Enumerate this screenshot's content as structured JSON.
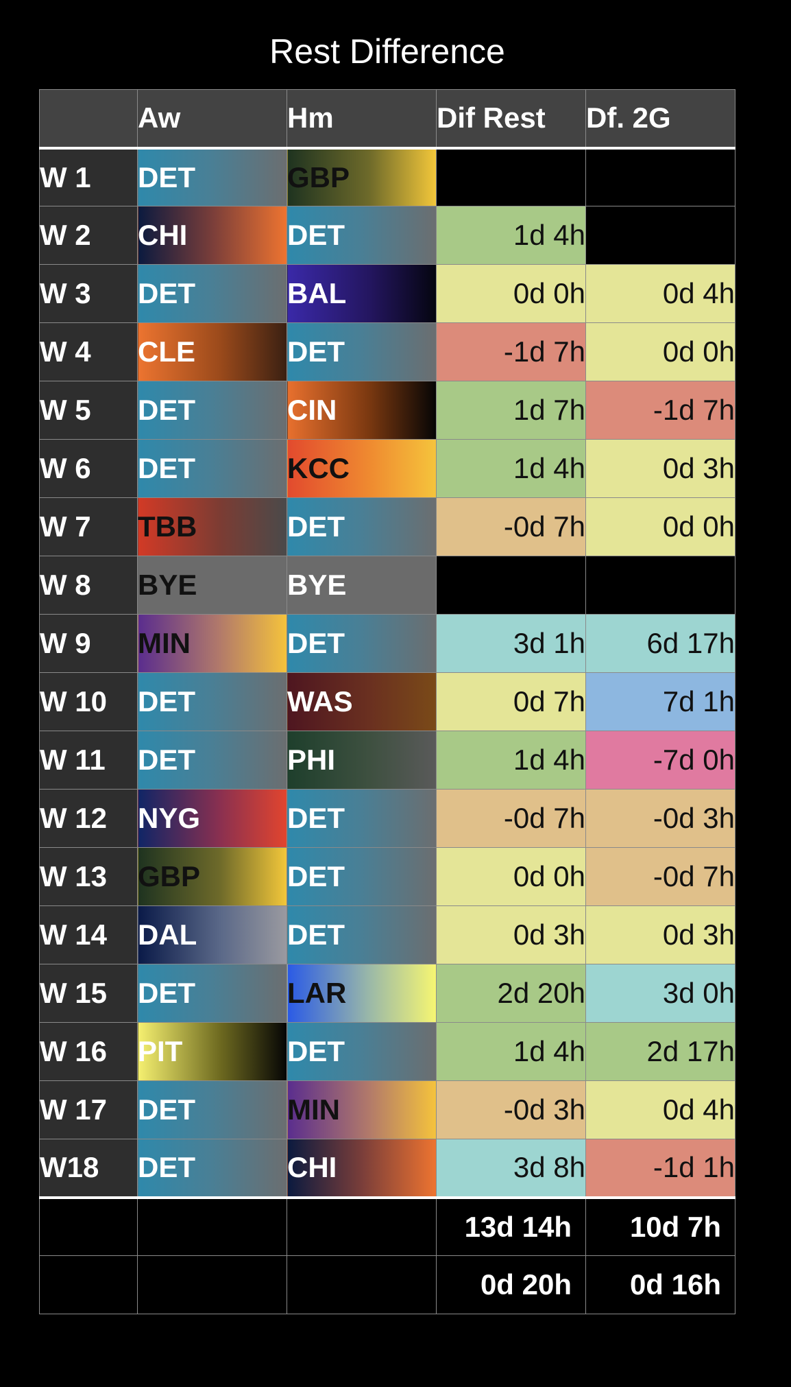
{
  "title": "Rest Difference",
  "headers": {
    "week": "",
    "away": "Aw",
    "home": "Hm",
    "dif_rest": "Dif Rest",
    "dif_2g": "Df. 2G"
  },
  "rows": [
    {
      "week": "W 1",
      "away": "DET",
      "away_text": "light",
      "home": "GBP",
      "home_text": "dark",
      "dif": "",
      "dif_color": "empty",
      "dif2": "",
      "dif2_color": "empty"
    },
    {
      "week": "W 2",
      "away": "CHI",
      "away_text": "light",
      "home": "DET",
      "home_text": "light",
      "dif": "1d 4h",
      "dif_color": "green",
      "dif2": "",
      "dif2_color": "empty"
    },
    {
      "week": "W 3",
      "away": "DET",
      "away_text": "light",
      "home": "BAL",
      "home_text": "light",
      "dif": "0d 0h",
      "dif_color": "yellow",
      "dif2": "0d 4h",
      "dif2_color": "yellow"
    },
    {
      "week": "W 4",
      "away": "CLE",
      "away_text": "light",
      "home": "DET",
      "home_text": "light",
      "dif": "-1d 7h",
      "dif_color": "red",
      "dif2": "0d 0h",
      "dif2_color": "yellow"
    },
    {
      "week": "W 5",
      "away": "DET",
      "away_text": "light",
      "home": "CIN",
      "home_text": "light",
      "dif": "1d 7h",
      "dif_color": "green",
      "dif2": "-1d 7h",
      "dif2_color": "red"
    },
    {
      "week": "W 6",
      "away": "DET",
      "away_text": "light",
      "home": "KCC",
      "home_text": "dark",
      "dif": "1d 4h",
      "dif_color": "green",
      "dif2": "0d 3h",
      "dif2_color": "yellow"
    },
    {
      "week": "W 7",
      "away": "TBB",
      "away_text": "dark",
      "home": "DET",
      "home_text": "light",
      "dif": "-0d 7h",
      "dif_color": "tan",
      "dif2": "0d 0h",
      "dif2_color": "yellow"
    },
    {
      "week": "W 8",
      "away": "BYE",
      "away_text": "dark",
      "home": "BYE",
      "home_text": "light",
      "dif": "",
      "dif_color": "empty",
      "dif2": "",
      "dif2_color": "empty"
    },
    {
      "week": "W 9",
      "away": "MIN",
      "away_text": "dark",
      "home": "DET",
      "home_text": "light",
      "dif": "3d 1h",
      "dif_color": "teal",
      "dif2": "6d 17h",
      "dif2_color": "teal"
    },
    {
      "week": "W 10",
      "away": "DET",
      "away_text": "light",
      "home": "WAS",
      "home_text": "light",
      "dif": "0d 7h",
      "dif_color": "yellow",
      "dif2": "7d 1h",
      "dif2_color": "blue"
    },
    {
      "week": "W 11",
      "away": "DET",
      "away_text": "light",
      "home": "PHI",
      "home_text": "light",
      "dif": "1d 4h",
      "dif_color": "green",
      "dif2": "-7d 0h",
      "dif2_color": "pink"
    },
    {
      "week": "W 12",
      "away": "NYG",
      "away_text": "light",
      "home": "DET",
      "home_text": "light",
      "dif": "-0d 7h",
      "dif_color": "tan",
      "dif2": "-0d 3h",
      "dif2_color": "tan"
    },
    {
      "week": "W 13",
      "away": "GBP",
      "away_text": "dark",
      "home": "DET",
      "home_text": "light",
      "dif": "0d 0h",
      "dif_color": "yellow",
      "dif2": "-0d 7h",
      "dif2_color": "tan"
    },
    {
      "week": "W 14",
      "away": "DAL",
      "away_text": "light",
      "home": "DET",
      "home_text": "light",
      "dif": "0d 3h",
      "dif_color": "yellow",
      "dif2": "0d 3h",
      "dif2_color": "yellow"
    },
    {
      "week": "W 15",
      "away": "DET",
      "away_text": "light",
      "home": "LAR",
      "home_text": "dark",
      "dif": "2d 20h",
      "dif_color": "green",
      "dif2": "3d 0h",
      "dif2_color": "teal"
    },
    {
      "week": "W 16",
      "away": "PIT",
      "away_text": "light",
      "home": "DET",
      "home_text": "light",
      "dif": "1d 4h",
      "dif_color": "green",
      "dif2": "2d 17h",
      "dif2_color": "green"
    },
    {
      "week": "W 17",
      "away": "DET",
      "away_text": "light",
      "home": "MIN",
      "home_text": "dark",
      "dif": "-0d 3h",
      "dif_color": "tan",
      "dif2": "0d 4h",
      "dif2_color": "yellow"
    },
    {
      "week": "W18",
      "away": "DET",
      "away_text": "light",
      "home": "CHI",
      "home_text": "light",
      "dif": "3d 8h",
      "dif_color": "teal",
      "dif2": "-1d 1h",
      "dif2_color": "red"
    }
  ],
  "totals": [
    {
      "dif": "13d 14h",
      "dif2": "10d 7h"
    },
    {
      "dif": "0d 20h",
      "dif2": "0d 16h"
    }
  ]
}
